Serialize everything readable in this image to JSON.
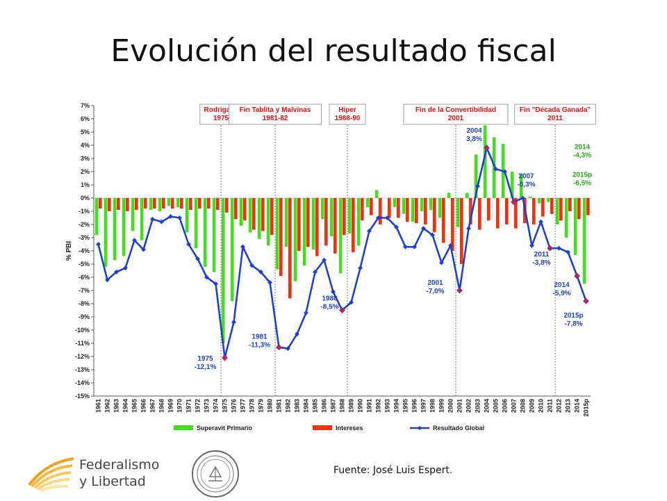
{
  "title": "Evolución del resultado fiscal",
  "source": "Fuente: José Luis Espert.",
  "logo": {
    "line1": "Federalismo",
    "line2": "y Libertad"
  },
  "colors": {
    "superavit": "#44dd22",
    "intereses": "#ee3311",
    "global_line": "#1f3fd0",
    "marker_highlight": "#d81b3c",
    "event_text": "#e01010",
    "green_label": "#22aa11",
    "blue_label": "#1f3fd0",
    "grid": "#d9d9d9"
  },
  "chart_data": {
    "type": "bar",
    "ylabel": "% PBI",
    "ylim": [
      -15,
      7
    ],
    "y_ticks": [
      "7%",
      "6%",
      "5%",
      "4%",
      "3%",
      "2%",
      "1%",
      "0%",
      "-1%",
      "-2%",
      "-3%",
      "-4%",
      "-5%",
      "-6%",
      "-7%",
      "-8%",
      "-9%",
      "-10%",
      "-11%",
      "-12%",
      "-13%",
      "-14%",
      "-15%"
    ],
    "categories": [
      "1961",
      "1962",
      "1963",
      "1964",
      "1965",
      "1966",
      "1967",
      "1968",
      "1969",
      "1970",
      "1971",
      "1972",
      "1973",
      "1974",
      "1975",
      "1976",
      "1977",
      "1978",
      "1979",
      "1980",
      "1981",
      "1982",
      "1983",
      "1984",
      "1985",
      "1986",
      "1987",
      "1988",
      "1989",
      "1990",
      "1991",
      "1992",
      "1993",
      "1994",
      "1995",
      "1996",
      "1997",
      "1998",
      "1999",
      "2000",
      "2001",
      "2002",
      "2003",
      "2004",
      "2005",
      "2006",
      "2007",
      "2008",
      "2009",
      "2010",
      "2011",
      "2012",
      "2013",
      "2014",
      "2015p"
    ],
    "series": [
      {
        "name": "Superavit Primario",
        "kind": "bar",
        "values": [
          -2.8,
          -5.2,
          -4.7,
          -4.4,
          -2.5,
          -3.2,
          -0.9,
          -1.0,
          -0.6,
          -0.7,
          -2.6,
          -3.8,
          -5.2,
          -5.6,
          -11.0,
          -7.8,
          -2.1,
          -2.6,
          -3.1,
          -3.6,
          -5.4,
          -3.7,
          -6.3,
          -5.1,
          -3.9,
          -1.6,
          -2.9,
          -5.7,
          -2.7,
          -3.6,
          -0.7,
          0.6,
          0.0,
          -0.7,
          -1.2,
          -1.8,
          -1.0,
          -0.9,
          -1.5,
          0.4,
          -2.2,
          0.4,
          3.3,
          5.5,
          4.6,
          4.1,
          2.0,
          1.8,
          0.1,
          -0.4,
          -0.3,
          -2.0,
          -3.0,
          -4.3,
          -6.5
        ]
      },
      {
        "name": "Intereses",
        "kind": "bar",
        "values": [
          -0.8,
          -1.0,
          -0.9,
          -1.0,
          -0.9,
          -0.8,
          -0.8,
          -0.8,
          -0.8,
          -0.8,
          -0.9,
          -0.8,
          -0.8,
          -0.9,
          -1.1,
          -1.6,
          -1.7,
          -2.4,
          -2.5,
          -2.8,
          -5.9,
          -7.6,
          -4.0,
          -3.7,
          -4.4,
          -3.6,
          -4.2,
          -2.8,
          -4.1,
          -1.7,
          -1.3,
          -2.0,
          -1.5,
          -1.5,
          -1.8,
          -1.9,
          -2.0,
          -2.6,
          -3.4,
          -4.0,
          -5.0,
          -2.0,
          -2.4,
          -1.7,
          -2.3,
          -2.0,
          -2.3,
          -1.9,
          -2.0,
          -1.4,
          -1.2,
          -1.7,
          -1.0,
          -1.6,
          -1.3
        ]
      },
      {
        "name": "Resultado Global",
        "kind": "line",
        "values": [
          -3.5,
          -6.2,
          -5.6,
          -5.3,
          -3.2,
          -3.9,
          -1.6,
          -1.8,
          -1.4,
          -1.5,
          -3.5,
          -4.6,
          -6.0,
          -6.5,
          -12.1,
          -9.4,
          -3.7,
          -5.1,
          -5.6,
          -6.4,
          -11.3,
          -11.4,
          -10.3,
          -8.7,
          -5.6,
          -4.7,
          -7.1,
          -8.5,
          -7.9,
          -5.3,
          -2.5,
          -1.5,
          -1.5,
          -2.2,
          -3.7,
          -3.7,
          -2.3,
          -2.8,
          -4.9,
          -3.6,
          -7.0,
          -2.3,
          0.9,
          3.8,
          2.2,
          2.0,
          -0.3,
          0.0,
          -3.6,
          -1.8,
          -3.8,
          -3.8,
          -4.1,
          -5.9,
          -7.8
        ],
        "highlighted_years": [
          "1975",
          "1981",
          "1988",
          "2001",
          "2004",
          "2007",
          "2011",
          "2014",
          "2015p"
        ]
      }
    ],
    "events": [
      {
        "lines": [
          "Rodrigazo",
          "1975"
        ],
        "year": "1975"
      },
      {
        "lines": [
          "Fin Tablita y Malvinas",
          "1981-82"
        ],
        "year": "1981"
      },
      {
        "lines": [
          "Hiper",
          "1988-90"
        ],
        "year": "1989"
      },
      {
        "lines": [
          "Fin de la Convertibilidad",
          "2001"
        ],
        "year": "2001"
      },
      {
        "lines": [
          "Fin \"Década Ganada\"",
          "2011"
        ],
        "year": "2012"
      }
    ],
    "annotations_blue": [
      {
        "lines": [
          "1975",
          "-12,1%"
        ],
        "year": "1975",
        "value": -12.1
      },
      {
        "lines": [
          "1981",
          "-11,3%"
        ],
        "year": "1981",
        "value": -11.3
      },
      {
        "lines": [
          "1988",
          "-8,5%"
        ],
        "year": "1988",
        "value": -8.5
      },
      {
        "lines": [
          "2001",
          "-7,0%"
        ],
        "year": "2001",
        "value": -7.0
      },
      {
        "lines": [
          "2004",
          "3,8%"
        ],
        "year": "2004",
        "value": 3.8
      },
      {
        "lines": [
          "2007",
          "-0,3%"
        ],
        "year": "2007",
        "value": -0.3
      },
      {
        "lines": [
          "2011",
          "-3,8%"
        ],
        "year": "2011",
        "value": -3.8
      },
      {
        "lines": [
          "2014",
          "-5,9%"
        ],
        "year": "2014",
        "value": -5.9
      },
      {
        "lines": [
          "2015p",
          "-7,8%"
        ],
        "year": "2015p",
        "value": -7.8
      }
    ],
    "annotations_green": [
      {
        "lines": [
          "2014",
          "-4,3%"
        ]
      },
      {
        "lines": [
          "2015p",
          "-6,5%"
        ]
      }
    ],
    "legend": {
      "placement": "bottom",
      "items": [
        "Superavit Primario",
        "Intereses",
        "Resultado Global"
      ]
    },
    "grid": false
  }
}
